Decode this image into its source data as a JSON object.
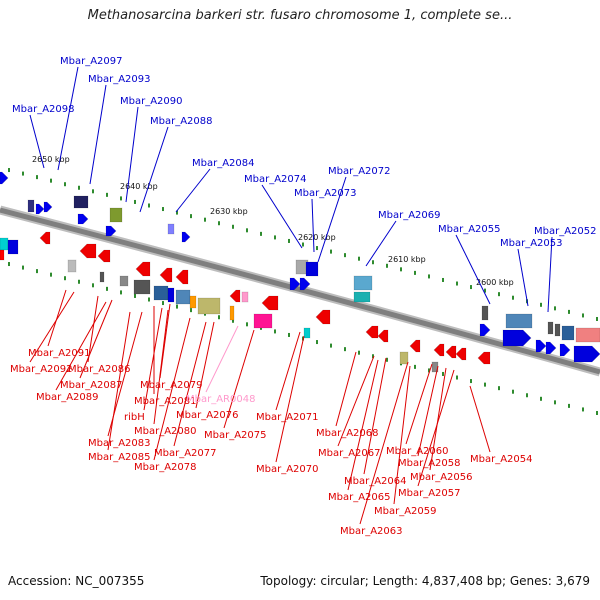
{
  "title": "Methanosarcina barkeri str. fusaro chromosome 1, complete se...",
  "footer": {
    "accession": "Accession: NC_007355",
    "topology": "Topology: circular; Length: 4,837,408 bp; Genes: 3,679"
  },
  "colors": {
    "forward_label": "#0000cc",
    "reverse_label": "#dd0000",
    "rna_label": "#ff99cc",
    "backbone": "#7f7f7f",
    "tick_mark": "#2e8b2e"
  },
  "tick_labels": [
    "2650 kbp",
    "2640 kbp",
    "2630 kbp",
    "2620 kbp",
    "2610 kbp",
    "2600 kbp"
  ],
  "forward_labels": [
    "Mbar_A2097",
    "Mbar_A2093",
    "Mbar_A2098",
    "Mbar_A2090",
    "Mbar_A2088",
    "Mbar_A2084",
    "Mbar_A2074",
    "Mbar_A2073",
    "Mbar_A2072",
    "Mbar_A2069",
    "Mbar_A2055",
    "Mbar_A2053",
    "Mbar_A2052"
  ],
  "reverse_labels": [
    "Mbar_A2091",
    "Mbar_A2092",
    "Mbar_A2086",
    "Mbar_A2087",
    "Mbar_A2089",
    "Mbar_A2081",
    "Mbar_A2079",
    "ribH",
    "Mbar_A2080",
    "Mbar_A2083",
    "Mbar_A2085",
    "Mbar_A2078",
    "Mbar_A2077",
    "Mbar_A2076",
    "Mbar_AR0048",
    "Mbar_A2075",
    "Mbar_A2071",
    "Mbar_A2070",
    "Mbar_A2068",
    "Mbar_A2067",
    "Mbar_A2064",
    "Mbar_A2065",
    "Mbar_A2063",
    "Mbar_A2060",
    "Mbar_A2058",
    "Mbar_A2056",
    "Mbar_A2057",
    "Mbar_A2059",
    "Mbar_A2054"
  ]
}
